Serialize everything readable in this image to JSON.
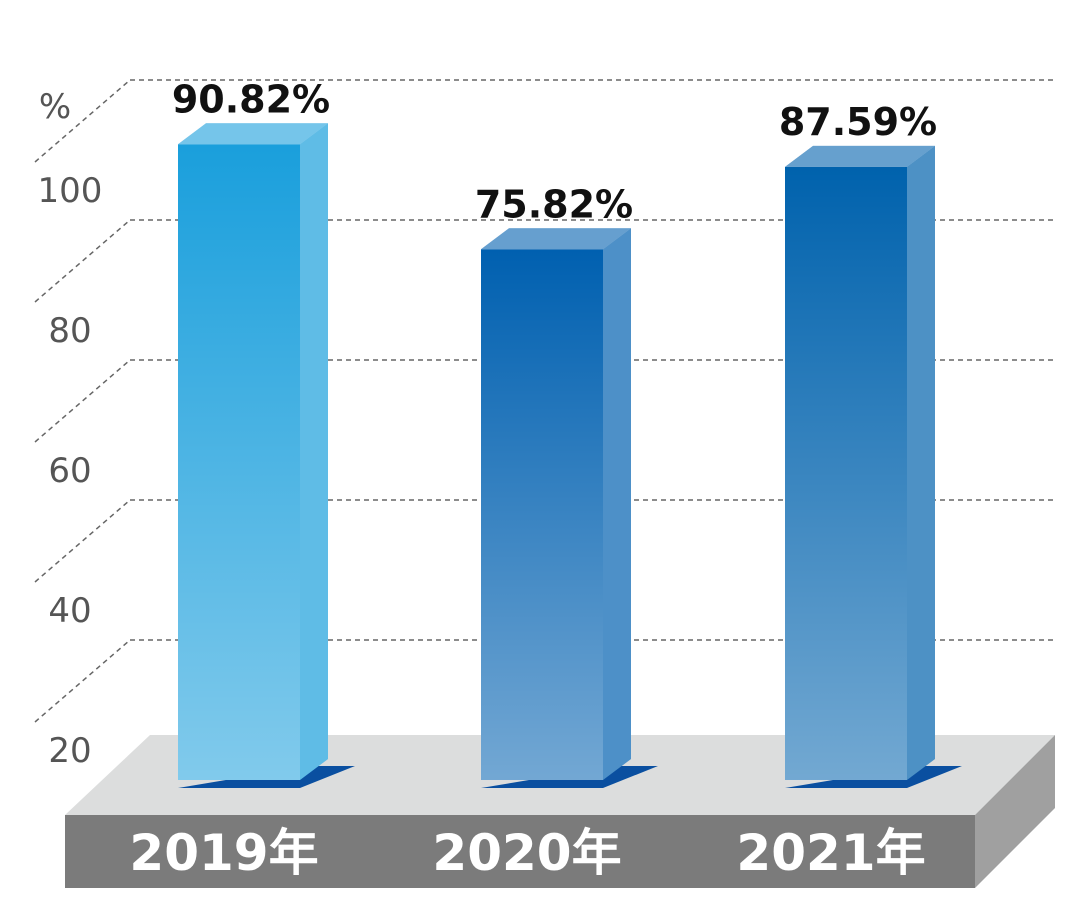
{
  "chart_data": {
    "type": "bar3d",
    "y_label": "%",
    "categories": [
      "2019年",
      "2020年",
      "2021年"
    ],
    "values": [
      90.82,
      75.82,
      87.59
    ],
    "value_labels": [
      "90.82%",
      "75.82%",
      "87.59%"
    ],
    "colors": [
      "#1a9fdc",
      "#0060b0",
      "#0062ad"
    ],
    "ylim": [
      0,
      110
    ],
    "yticks": [
      20,
      40,
      60,
      80,
      100
    ],
    "grid": true
  }
}
